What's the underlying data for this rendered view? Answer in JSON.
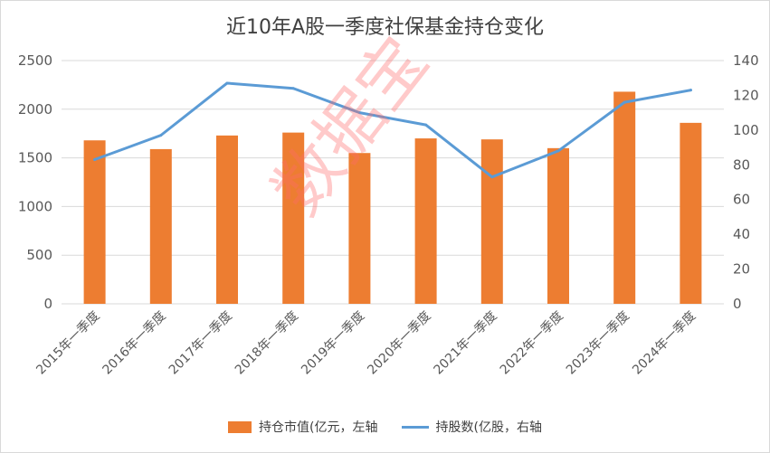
{
  "chart_data": {
    "type": "bar+line",
    "title": "近10年A股一季度社保基金持仓变化",
    "categories": [
      "2015年一季度",
      "2016年一季度",
      "2017年一季度",
      "2018年一季度",
      "2019年一季度",
      "2020年一季度",
      "2021年一季度",
      "2022年一季度",
      "2023年一季度",
      "2024年一季度"
    ],
    "series": [
      {
        "name": "持仓市值(亿元，左轴",
        "type": "bar",
        "axis": "left",
        "color": "#ed7d31",
        "values": [
          1680,
          1590,
          1730,
          1760,
          1550,
          1700,
          1690,
          1600,
          2180,
          1860
        ]
      },
      {
        "name": "持股数(亿股，右轴",
        "type": "line",
        "axis": "right",
        "color": "#5b9bd5",
        "values": [
          83,
          97,
          127,
          124,
          110,
          103,
          73,
          88,
          116,
          123
        ]
      }
    ],
    "left_axis": {
      "min": 0,
      "max": 2500,
      "ticks": [
        "0",
        "500",
        "1000",
        "1500",
        "2000",
        "2500"
      ]
    },
    "right_axis": {
      "min": 0,
      "max": 140,
      "ticks": [
        "0",
        "20",
        "40",
        "60",
        "80",
        "100",
        "120",
        "140"
      ]
    },
    "grid": true,
    "legend_position": "bottom"
  },
  "watermark": "数据宝"
}
